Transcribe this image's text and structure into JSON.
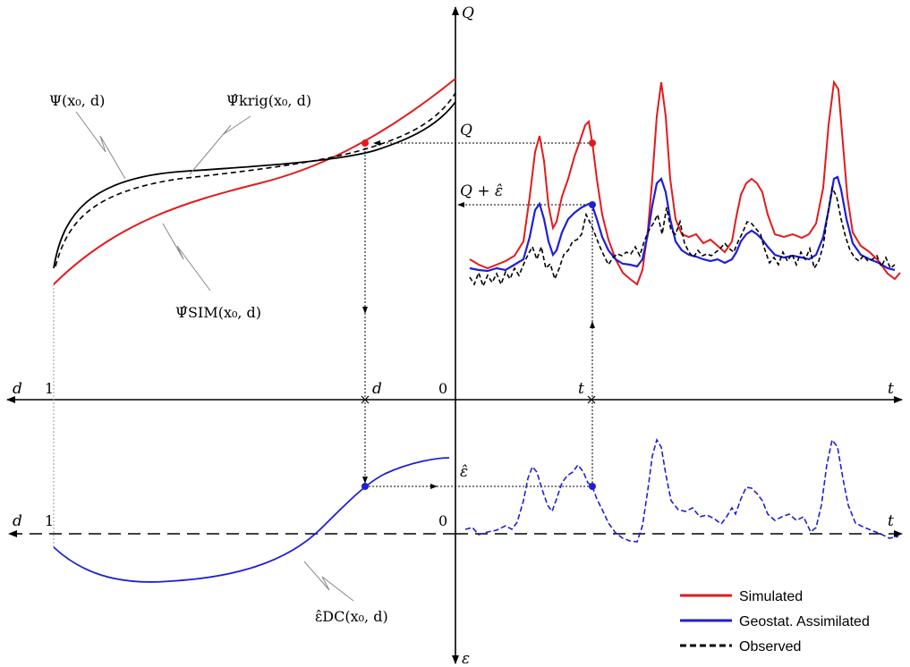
{
  "axes": {
    "top_vertical": "Q",
    "bottom_vertical": "ε",
    "horiz_left": "d",
    "horiz_right": "t",
    "tick_one": "1",
    "tick_zero": "0",
    "tick_d": "d",
    "tick_t": "t",
    "lower_left": "d",
    "lower_one": "1",
    "lower_zero": "0",
    "lower_right": "t"
  },
  "labels": {
    "psi": "Ψ(x₀, d)",
    "psi_krig": "Ψ̂krig(x₀, d)",
    "psi_sim": "Ψ̂SIM(x₀, d)",
    "eps_dc": "ε̂DC(x₀, d)",
    "q_value": "Q",
    "q_plus_eps": "Q + ε̂",
    "eps_hat": "ε̂"
  },
  "legend": {
    "items": [
      {
        "label": "Simulated",
        "color": "#e31a1c",
        "style": "solid"
      },
      {
        "label": "Geostat. Assimilated",
        "color": "#1f1fd6",
        "style": "solid"
      },
      {
        "label": "Observed",
        "color": "#000000",
        "style": "dashed"
      }
    ]
  },
  "colors": {
    "simulated": "#e31a1c",
    "assimilated": "#1f1fd6",
    "observed": "#000000",
    "axis": "#000000"
  }
}
